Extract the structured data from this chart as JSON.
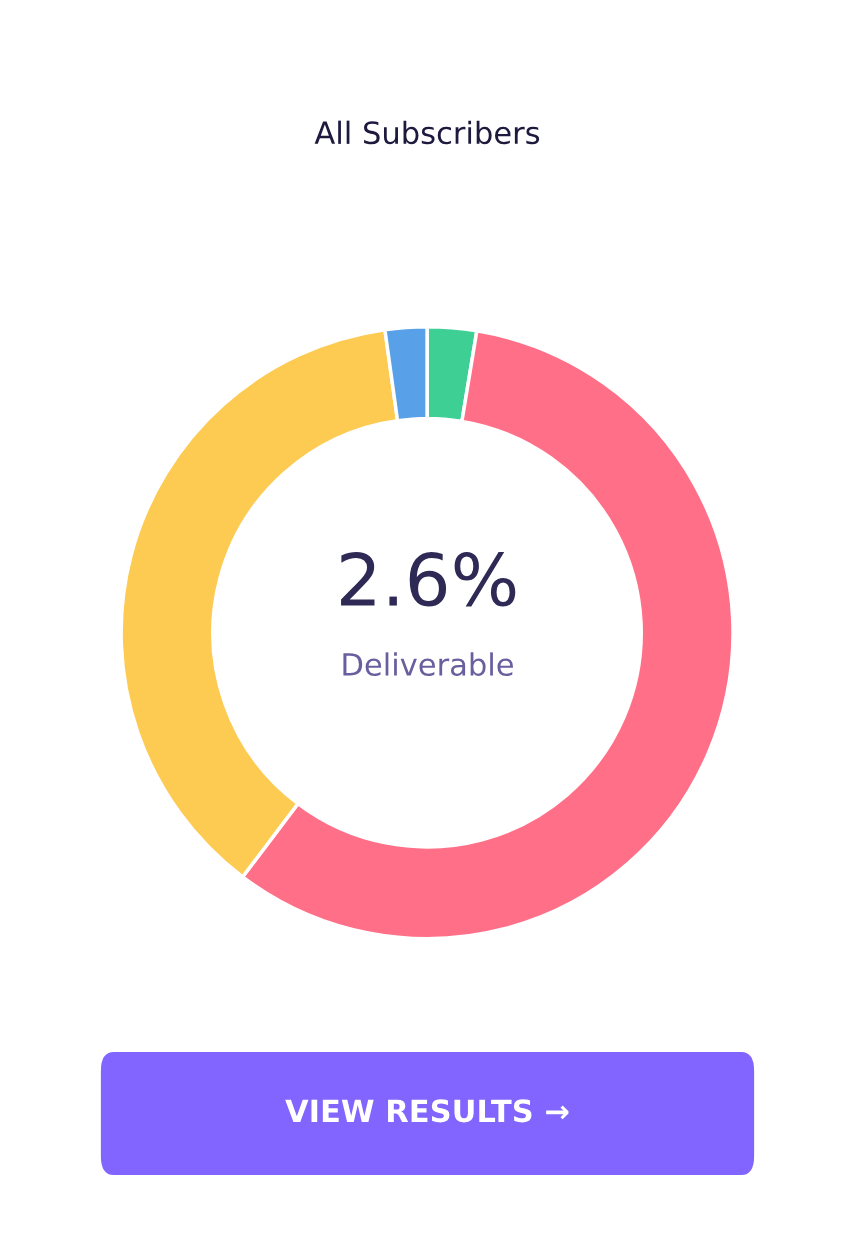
{
  "chart_data": {
    "type": "donut",
    "title": "All Subscribers",
    "categories": [
      null,
      null,
      null,
      null
    ],
    "values": [
      2.6,
      57.7,
      37.5,
      2.2
    ],
    "colors": [
      "#3ecf95",
      "#ff7088",
      "#fdca52",
      "#58a0e8"
    ],
    "annotations": [
      "2.6%",
      "Deliverable",
      "VIEW RESULTS →"
    ]
  }
}
